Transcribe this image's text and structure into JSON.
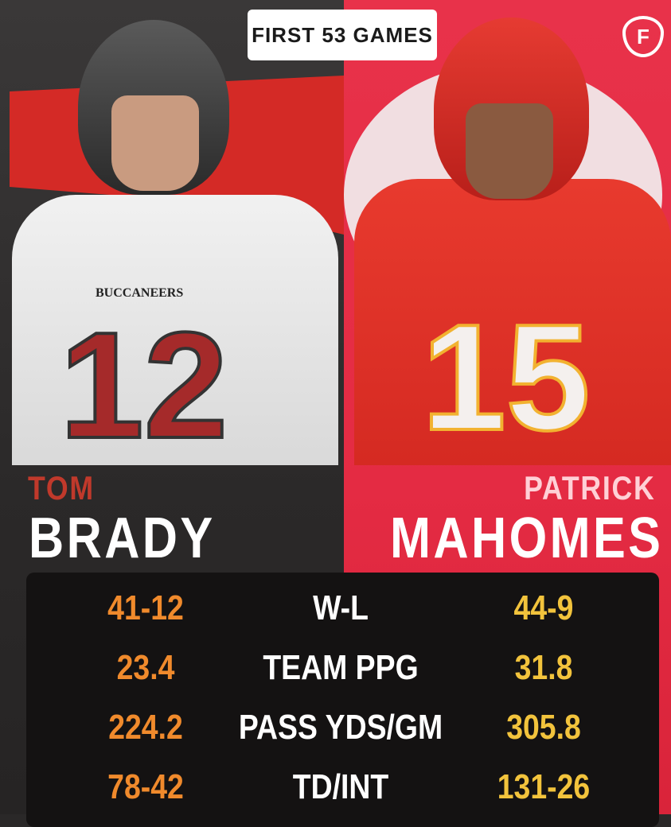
{
  "header": {
    "title": "FIRST 53 GAMES",
    "logo": "fanduel-shield-logo"
  },
  "left_player": {
    "first_name": "TOM",
    "last_name": "BRADY",
    "jersey_number": "12",
    "team": "BUCCANEERS",
    "color": "#f08a2c"
  },
  "right_player": {
    "first_name": "PATRICK",
    "last_name": "MAHOMES",
    "jersey_number": "15",
    "color": "#f2c33c"
  },
  "stats": [
    {
      "label": "W-L",
      "left": "41-12",
      "right": "44-9"
    },
    {
      "label": "TEAM PPG",
      "left": "23.4",
      "right": "31.8"
    },
    {
      "label": "PASS YDS/GM",
      "left": "224.2",
      "right": "305.8"
    },
    {
      "label": "TD/INT",
      "left": "78-42",
      "right": "131-26"
    }
  ]
}
